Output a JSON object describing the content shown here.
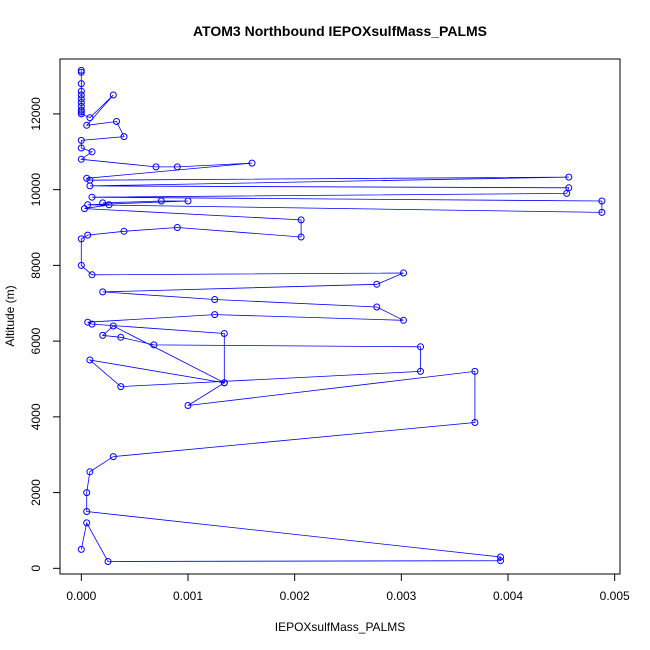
{
  "chart_data": {
    "type": "line",
    "title": "ATOM3 Northbound IEPOXsulfMass_PALMS",
    "xlabel": "IEPOXsulfMass_PALMS",
    "ylabel": "Altitude (m)",
    "xlim": [
      -0.0002,
      0.00505
    ],
    "ylim": [
      -150,
      13450
    ],
    "x_ticks": [
      0.0,
      0.001,
      0.002,
      0.003,
      0.004,
      0.005
    ],
    "x_tick_labels": [
      "0.000",
      "0.001",
      "0.002",
      "0.003",
      "0.004",
      "0.005"
    ],
    "y_ticks": [
      0,
      2000,
      4000,
      6000,
      8000,
      10000,
      12000
    ],
    "y_tick_labels": [
      "0",
      "2000",
      "4000",
      "6000",
      "8000",
      "10000",
      "12000"
    ],
    "grid": false,
    "legend": "none",
    "marker": "open-circle",
    "series_color": "#0000ff",
    "series": [
      {
        "x": [
          0,
          0,
          0,
          0,
          0,
          0,
          0,
          0,
          0,
          0,
          0,
          8e-05,
          0.0003,
          5e-05,
          0.00033,
          0.0004,
          0,
          0,
          0.0001,
          0,
          0.0007,
          0.0009,
          0.0016,
          5e-05,
          8e-05,
          0.00457,
          8e-05,
          0.00457,
          0.00455,
          0.0001,
          0.00488,
          0.00488,
          6e-05,
          0.001,
          0.00075,
          0.0002,
          0.00026,
          3e-05,
          0.00206,
          0.00206,
          0.0009,
          0.0004,
          6e-05,
          0,
          0,
          0.0001,
          0.00302,
          0.00277,
          0.0002,
          0.00125,
          0.00277,
          0.00302,
          0.00125,
          6e-05,
          0.0001,
          0.00134,
          0.00134,
          0.0003,
          0.0002,
          0.00037,
          0.00068,
          0.00318,
          0.00318,
          0.00037,
          8e-05,
          0.00134,
          0.001,
          0.00369,
          0.00369,
          0.0003,
          8e-05,
          5e-05,
          5e-05,
          0.00393,
          0.00393,
          0.00025,
          5e-05,
          0
        ],
        "y": [
          13150,
          13100,
          12800,
          12600,
          12500,
          12400,
          12300,
          12200,
          12100,
          12050,
          12000,
          11900,
          12500,
          11700,
          11800,
          11400,
          11300,
          11100,
          11000,
          10800,
          10600,
          10600,
          10700,
          10300,
          10250,
          10330,
          10100,
          10050,
          9900,
          9800,
          9700,
          9400,
          9600,
          9700,
          9700,
          9650,
          9600,
          9500,
          9200,
          8750,
          9000,
          8900,
          8800,
          8700,
          8000,
          7750,
          7800,
          7500,
          7300,
          7100,
          6900,
          6550,
          6700,
          6500,
          6450,
          6200,
          4900,
          6400,
          6150,
          6100,
          5900,
          5850,
          5200,
          4800,
          5500,
          4900,
          4300,
          5200,
          3850,
          2950,
          2550,
          2000,
          1500,
          300,
          200,
          180,
          1200,
          500
        ]
      }
    ]
  }
}
